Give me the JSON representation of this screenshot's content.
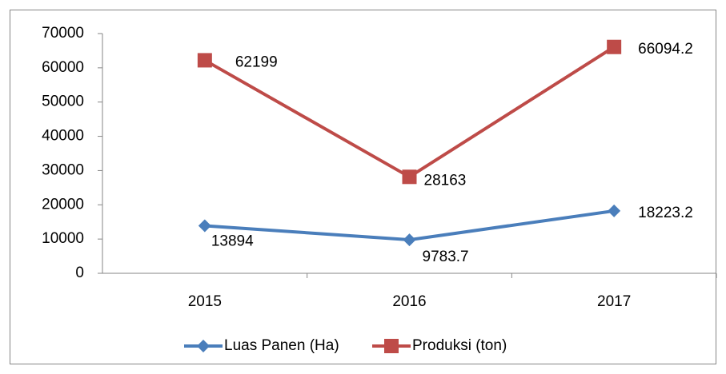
{
  "chart_data": {
    "type": "line",
    "categories": [
      "2015",
      "2016",
      "2017"
    ],
    "series": [
      {
        "name": "Luas Panen (Ha)",
        "color": "#4a7ebb",
        "values": [
          13894,
          9783.7,
          18223.2
        ]
      },
      {
        "name": "Produksi (ton)",
        "color": "#be4b48",
        "values": [
          62199,
          28163,
          66094.2
        ]
      }
    ],
    "ylim": [
      0,
      70000
    ],
    "yticks": [
      0,
      10000,
      20000,
      30000,
      40000,
      50000,
      60000,
      70000
    ],
    "grid": false,
    "legend": "bottom"
  }
}
